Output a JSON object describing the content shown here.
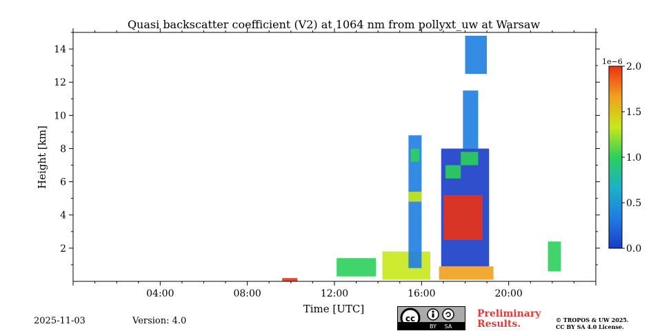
{
  "chart_data": {
    "type": "heatmap",
    "title": "Quasi backscatter coefficient (V2) at 1064 nm from pollyxt_uw at Warsaw",
    "xlabel": "Time [UTC]",
    "ylabel": "Height [km]",
    "xlim": [
      0,
      24
    ],
    "ylim": [
      0,
      15
    ],
    "x_ticks": [
      {
        "value": 4,
        "label": "04:00"
      },
      {
        "value": 8,
        "label": "08:00"
      },
      {
        "value": 12,
        "label": "12:00"
      },
      {
        "value": 16,
        "label": "16:00"
      },
      {
        "value": 20,
        "label": "20:00"
      }
    ],
    "y_ticks": [
      {
        "value": 2,
        "label": "2"
      },
      {
        "value": 4,
        "label": "4"
      },
      {
        "value": 6,
        "label": "6"
      },
      {
        "value": 8,
        "label": "8"
      },
      {
        "value": 10,
        "label": "10"
      },
      {
        "value": 12,
        "label": "12"
      },
      {
        "value": 14,
        "label": "14"
      }
    ],
    "colorbar": {
      "multiplier_label": "1e−6",
      "range": [
        0,
        2
      ],
      "ticks": [
        {
          "value": 0,
          "label": "0.0"
        },
        {
          "value": 0.5,
          "label": "0.5"
        },
        {
          "value": 1,
          "label": "1.0"
        },
        {
          "value": 1.5,
          "label": "1.5"
        },
        {
          "value": 2,
          "label": "2.0"
        }
      ],
      "colors": [
        "#1a3cc8",
        "#1f7de0",
        "#1ab2c8",
        "#2ccf5c",
        "#c8e81a",
        "#f0a01e",
        "#ec3214"
      ]
    },
    "regions": [
      {
        "name": "aerosol-layer-13h",
        "t0": 12.1,
        "t1": 13.9,
        "h0": 0.3,
        "h1": 1.4,
        "value": 1.1
      },
      {
        "name": "low-layer-14-16h",
        "t0": 14.2,
        "t1": 16.4,
        "h0": 0.1,
        "h1": 1.8,
        "value": 1.2
      },
      {
        "name": "plume-15-16h",
        "t0": 15.4,
        "t1": 16.0,
        "h0": 0.8,
        "h1": 8.8,
        "value": 0.2
      },
      {
        "name": "plume-edge-7-8km",
        "t0": 15.5,
        "t1": 15.9,
        "h0": 7.2,
        "h1": 8.0,
        "value": 1.0
      },
      {
        "name": "plume-edge-5km",
        "t0": 15.4,
        "t1": 16.0,
        "h0": 4.8,
        "h1": 5.4,
        "value": 1.2
      },
      {
        "name": "cloud-17-19h",
        "t0": 16.9,
        "t1": 19.1,
        "h0": 0.9,
        "h1": 8.0,
        "value": 0.15
      },
      {
        "name": "cloud-top-17h",
        "t0": 17.1,
        "t1": 17.8,
        "h0": 6.2,
        "h1": 7.0,
        "value": 1.1
      },
      {
        "name": "cloud-top-18h",
        "t0": 17.8,
        "t1": 18.6,
        "h0": 7.0,
        "h1": 7.8,
        "value": 1.0
      },
      {
        "name": "thin-column-18h",
        "t0": 17.9,
        "t1": 18.6,
        "h0": 8.0,
        "h1": 11.5,
        "value": 0.2
      },
      {
        "name": "boundary-layer-17-19h",
        "t0": 16.8,
        "t1": 19.3,
        "h0": 0.1,
        "h1": 0.9,
        "value": 1.6
      },
      {
        "name": "cirrus-top-18h",
        "t0": 18.0,
        "t1": 19.0,
        "h0": 12.5,
        "h1": 14.8,
        "value": 0.25
      },
      {
        "name": "dense-cloud-core",
        "t0": 17.0,
        "t1": 18.8,
        "h0": 2.5,
        "h1": 5.2,
        "value": 1.9
      },
      {
        "name": "surface-layer-22h",
        "t0": 21.8,
        "t1": 22.4,
        "h0": 0.6,
        "h1": 2.4,
        "value": 0.9
      },
      {
        "name": "surface-spot-10h",
        "t0": 9.6,
        "t1": 10.3,
        "h0": 0.0,
        "h1": 0.2,
        "value": 2.0
      }
    ]
  },
  "footer": {
    "date": "2025-11-03",
    "version": "Version: 4.0",
    "license_badge": [
      "BY",
      "SA"
    ],
    "preliminary_line1": "Preliminary",
    "preliminary_line2": "Results.",
    "copyright_line1": "© TROPOS & UW 2025.",
    "copyright_line2": "CC BY SA 4.0 License."
  }
}
